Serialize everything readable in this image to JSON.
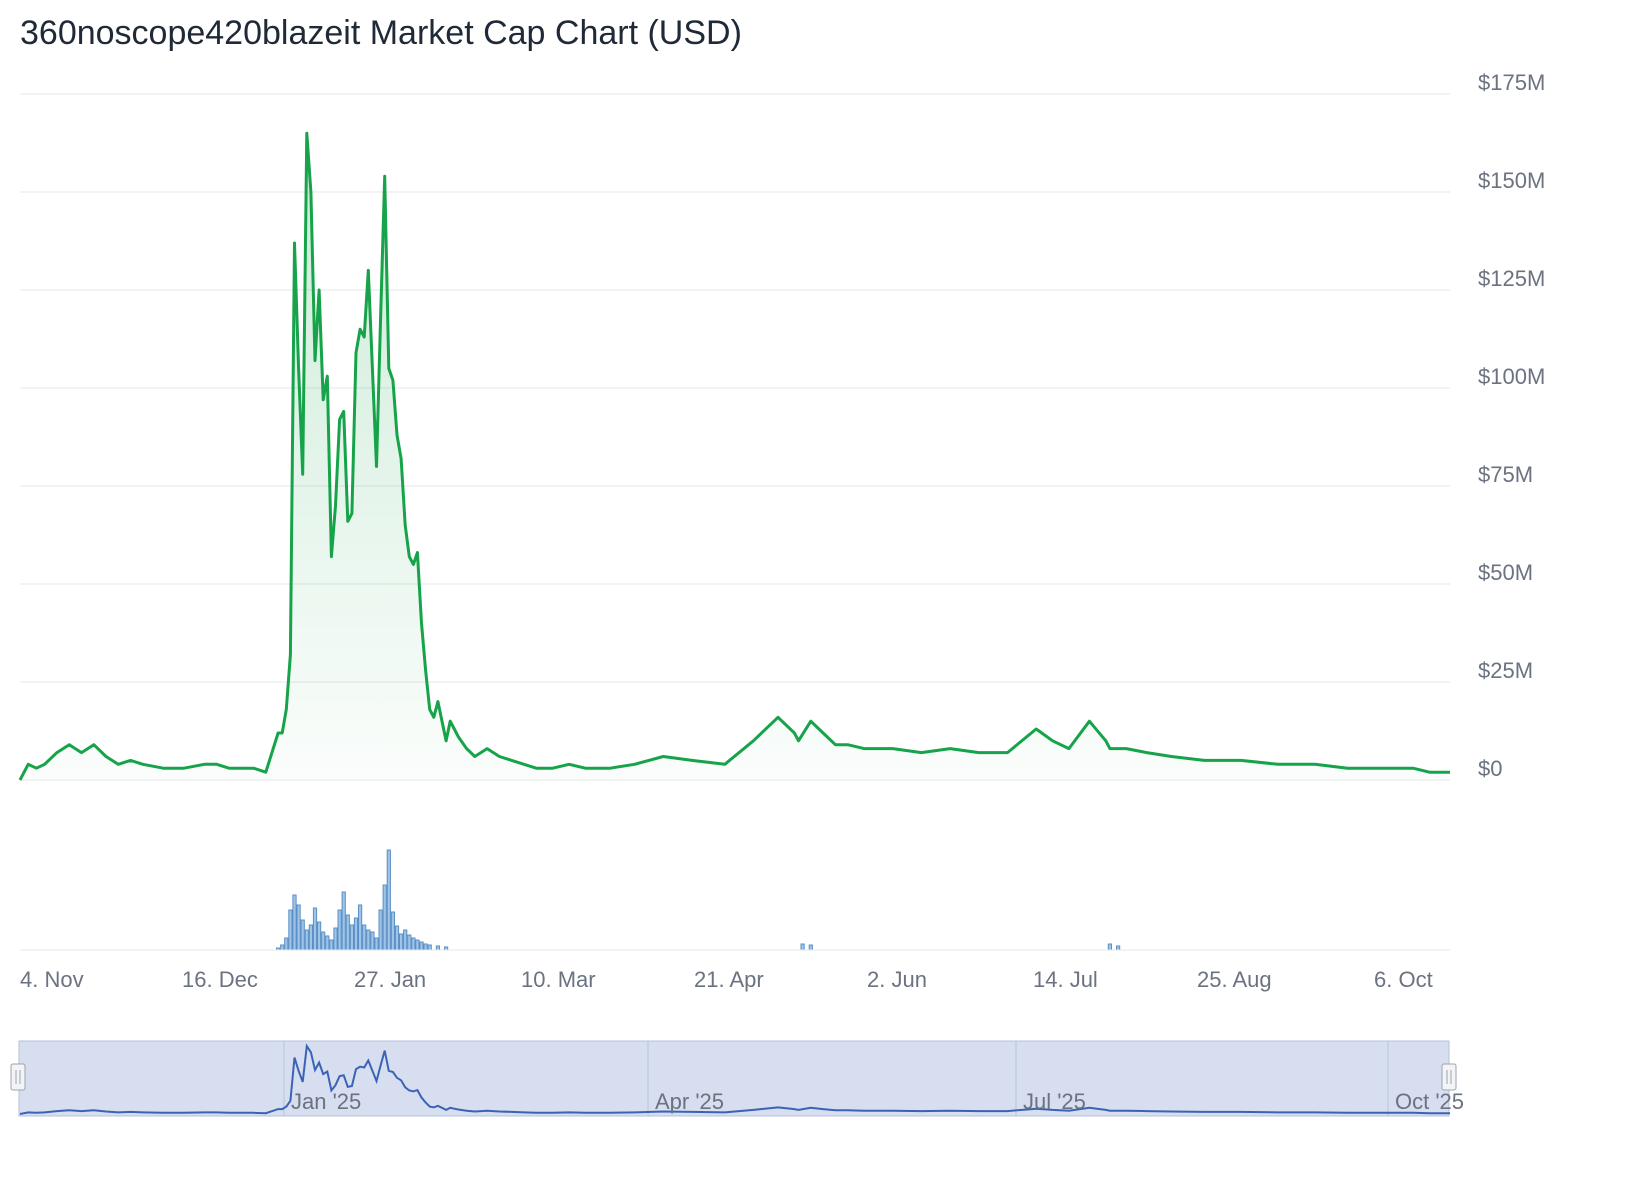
{
  "title": "360noscope420blazeit Market Cap Chart (USD)",
  "colors": {
    "price_line": "#16a34a",
    "volume_fill": "#9ec5e8",
    "volume_stroke": "#5b8ec4",
    "navigator_bg": "#d6deef",
    "navigator_line": "#3b63b5",
    "grid": "#e5e7eb",
    "label": "#6b7280"
  },
  "chart_data": {
    "type": "area",
    "title": "360noscope420blazeit Market Cap Chart (USD)",
    "ylim": [
      0,
      175
    ],
    "yunit": "USD millions",
    "y_ticks": [
      "$0",
      "$25M",
      "$50M",
      "$75M",
      "$100M",
      "$125M",
      "$150M",
      "$175M"
    ],
    "x_ticks": [
      "4. Nov",
      "16. Dec",
      "27. Jan",
      "10. Mar",
      "21. Apr",
      "2. Jun",
      "14. Jul",
      "25. Aug",
      "6. Oct"
    ],
    "grid": true,
    "series": [
      {
        "type": "area",
        "x": [
          "2024-10-31",
          "2024-11-02",
          "2024-11-04",
          "2024-11-06",
          "2024-11-09",
          "2024-11-12",
          "2024-11-15",
          "2024-11-18",
          "2024-11-21",
          "2024-11-24",
          "2024-11-27",
          "2024-11-30",
          "2024-12-05",
          "2024-12-10",
          "2024-12-15",
          "2024-12-18",
          "2024-12-21",
          "2024-12-24",
          "2024-12-27",
          "2024-12-30",
          "2025-01-02",
          "2025-01-03",
          "2025-01-04",
          "2025-01-05",
          "2025-01-06",
          "2025-01-07",
          "2025-01-08",
          "2025-01-09",
          "2025-01-10",
          "2025-01-11",
          "2025-01-12",
          "2025-01-13",
          "2025-01-14",
          "2025-01-15",
          "2025-01-16",
          "2025-01-17",
          "2025-01-18",
          "2025-01-19",
          "2025-01-20",
          "2025-01-21",
          "2025-01-22",
          "2025-01-23",
          "2025-01-24",
          "2025-01-25",
          "2025-01-26",
          "2025-01-27",
          "2025-01-28",
          "2025-01-29",
          "2025-01-30",
          "2025-01-31",
          "2025-02-01",
          "2025-02-02",
          "2025-02-03",
          "2025-02-04",
          "2025-02-05",
          "2025-02-06",
          "2025-02-07",
          "2025-02-08",
          "2025-02-09",
          "2025-02-10",
          "2025-02-11",
          "2025-02-12",
          "2025-02-13",
          "2025-02-14",
          "2025-02-15",
          "2025-02-17",
          "2025-02-19",
          "2025-02-22",
          "2025-02-25",
          "2025-02-28",
          "2025-03-03",
          "2025-03-06",
          "2025-03-10",
          "2025-03-14",
          "2025-03-18",
          "2025-03-24",
          "2025-03-30",
          "2025-04-06",
          "2025-04-13",
          "2025-04-21",
          "2025-04-28",
          "2025-05-04",
          "2025-05-08",
          "2025-05-09",
          "2025-05-12",
          "2025-05-15",
          "2025-05-18",
          "2025-05-21",
          "2025-05-25",
          "2025-06-01",
          "2025-06-08",
          "2025-06-15",
          "2025-06-22",
          "2025-06-29",
          "2025-07-06",
          "2025-07-10",
          "2025-07-14",
          "2025-07-19",
          "2025-07-23",
          "2025-07-24",
          "2025-07-28",
          "2025-08-02",
          "2025-08-08",
          "2025-08-16",
          "2025-08-25",
          "2025-09-03",
          "2025-09-12",
          "2025-09-20",
          "2025-09-28",
          "2025-10-06",
          "2025-10-10",
          "2025-10-15"
        ],
        "values": [
          0,
          4,
          3,
          4,
          7,
          9,
          7,
          9,
          6,
          4,
          5,
          4,
          3,
          3,
          4,
          4,
          3,
          3,
          3,
          2,
          12,
          12,
          18,
          32,
          137,
          105,
          78,
          165,
          150,
          107,
          125,
          97,
          103,
          57,
          70,
          92,
          94,
          66,
          68,
          109,
          115,
          113,
          130,
          105,
          80,
          118,
          154,
          105,
          102,
          88,
          82,
          65,
          57,
          55,
          58,
          40,
          28,
          18,
          16,
          20,
          15,
          10,
          15,
          13,
          11,
          8,
          6,
          8,
          6,
          5,
          4,
          3,
          3,
          4,
          3,
          3,
          4,
          6,
          5,
          4,
          10,
          16,
          12,
          10,
          15,
          12,
          9,
          9,
          8,
          8,
          7,
          8,
          7,
          7,
          13,
          10,
          8,
          15,
          10,
          8,
          8,
          7,
          6,
          5,
          5,
          4,
          4,
          3,
          3,
          3,
          2,
          2
        ]
      }
    ],
    "volume": {
      "type": "bar",
      "note_unit": "relative",
      "x": [
        "2025-01-02",
        "2025-01-03",
        "2025-01-04",
        "2025-01-05",
        "2025-01-06",
        "2025-01-07",
        "2025-01-08",
        "2025-01-09",
        "2025-01-10",
        "2025-01-11",
        "2025-01-12",
        "2025-01-13",
        "2025-01-14",
        "2025-01-15",
        "2025-01-16",
        "2025-01-17",
        "2025-01-18",
        "2025-01-19",
        "2025-01-20",
        "2025-01-21",
        "2025-01-22",
        "2025-01-23",
        "2025-01-24",
        "2025-01-25",
        "2025-01-26",
        "2025-01-27",
        "2025-01-28",
        "2025-01-29",
        "2025-01-30",
        "2025-01-31",
        "2025-02-01",
        "2025-02-02",
        "2025-02-03",
        "2025-02-04",
        "2025-02-05",
        "2025-02-06",
        "2025-02-07",
        "2025-02-08",
        "2025-02-10",
        "2025-02-12",
        "2025-05-10",
        "2025-05-12",
        "2025-07-24",
        "2025-07-26"
      ],
      "values": [
        2,
        5,
        12,
        40,
        55,
        45,
        30,
        20,
        25,
        42,
        28,
        18,
        14,
        10,
        22,
        40,
        58,
        35,
        25,
        32,
        45,
        25,
        20,
        18,
        12,
        40,
        65,
        100,
        38,
        24,
        16,
        20,
        15,
        12,
        10,
        8,
        6,
        5,
        4,
        3,
        6,
        5,
        6,
        4
      ]
    }
  },
  "navigator": {
    "labels": [
      "Jan '25",
      "Apr '25",
      "Jul '25",
      "Oct '25"
    ]
  }
}
